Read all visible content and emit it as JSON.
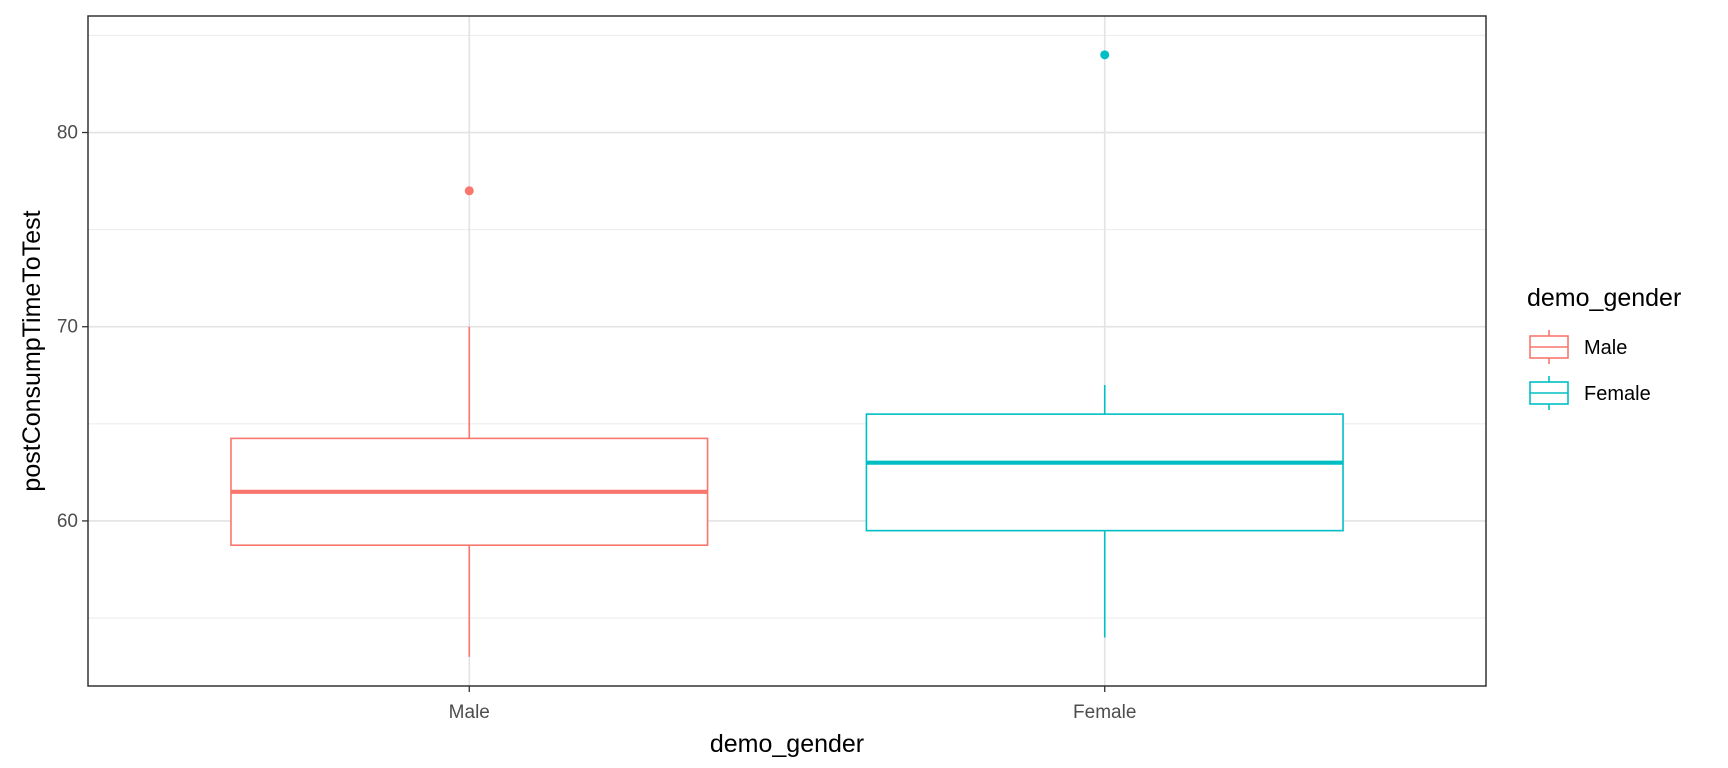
{
  "chart_data": {
    "type": "boxplot",
    "xlabel": "demo_gender",
    "ylabel": "postConsumpTimeToTest",
    "categories": [
      "Male",
      "Female"
    ],
    "ylim": [
      51.5,
      86.0
    ],
    "y_ticks": [
      60,
      70,
      80
    ],
    "y_tick_labels": [
      "60",
      "70",
      "80"
    ],
    "y_minor_gridlines": [
      55,
      65,
      75,
      85
    ],
    "grid": true,
    "legend": {
      "title": "demo_gender",
      "position": "right",
      "entries": [
        "Male",
        "Female"
      ]
    },
    "series": [
      {
        "name": "Male",
        "color": "#F8766D",
        "min": 53,
        "q1": 58.75,
        "median": 61.5,
        "q3": 64.25,
        "max": 70,
        "outliers": [
          77
        ]
      },
      {
        "name": "Female",
        "color": "#00BFC4",
        "min": 54,
        "q1": 59.5,
        "median": 63,
        "q3": 65.5,
        "max": 67,
        "outliers": [
          84
        ]
      }
    ]
  }
}
